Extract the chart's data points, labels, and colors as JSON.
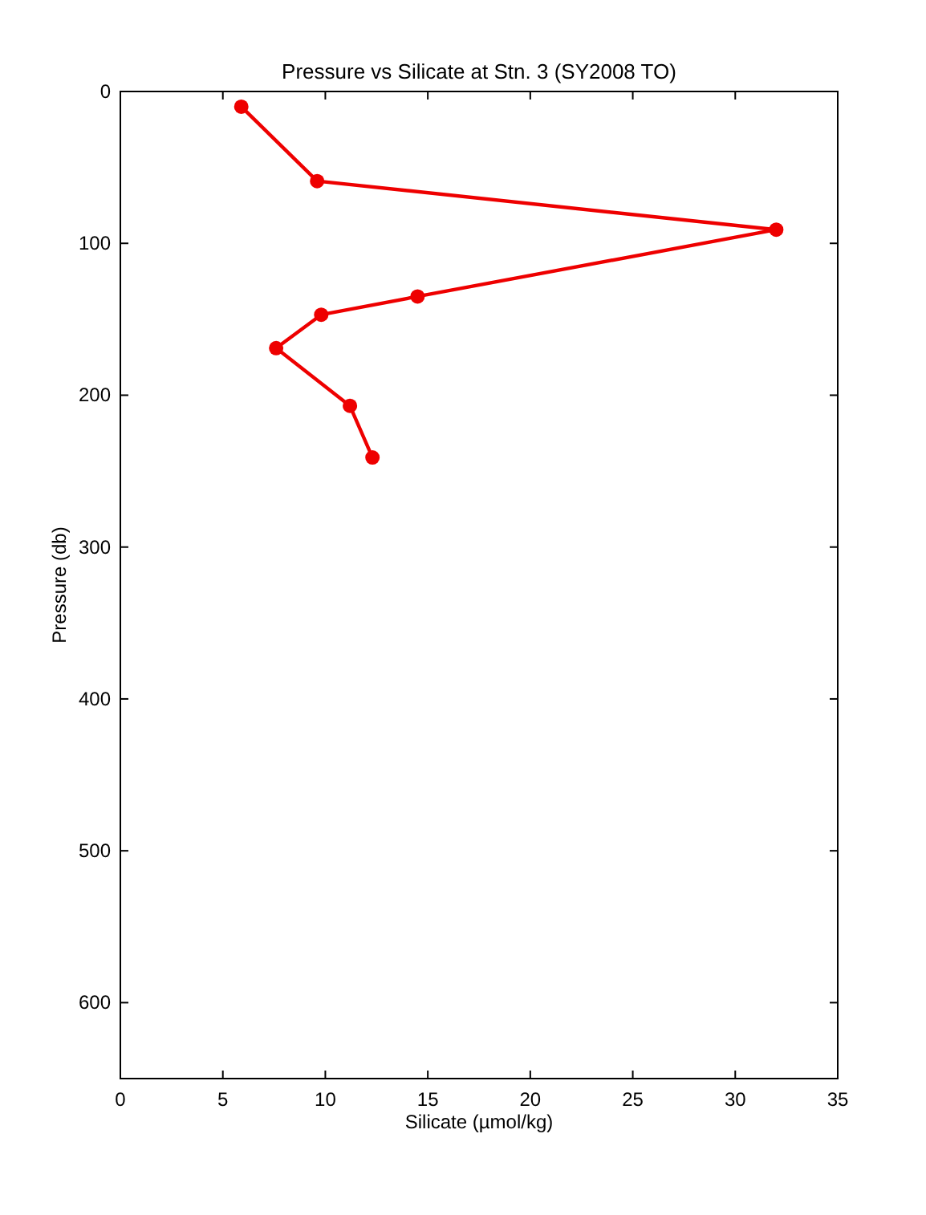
{
  "chart_data": {
    "type": "line",
    "title": "Pressure vs Silicate at Stn. 3 (SY2008 TO)",
    "xlabel": "Silicate (µmol/kg)",
    "ylabel": "Pressure (db)",
    "x": [
      5.9,
      9.6,
      32.0,
      14.5,
      9.8,
      7.6,
      11.2,
      12.3
    ],
    "series": [
      {
        "color": "#ee0000",
        "values": [
          10,
          59,
          91,
          135,
          147,
          169,
          207,
          241
        ]
      }
    ],
    "xlim": [
      0,
      35
    ],
    "xticks": [
      0,
      5,
      10,
      15,
      20,
      25,
      30,
      35
    ],
    "ylim": [
      650,
      0
    ],
    "yticks": [
      0,
      100,
      200,
      300,
      400,
      500,
      600
    ],
    "grid": false,
    "marker": "circle",
    "line_style": "solid"
  }
}
